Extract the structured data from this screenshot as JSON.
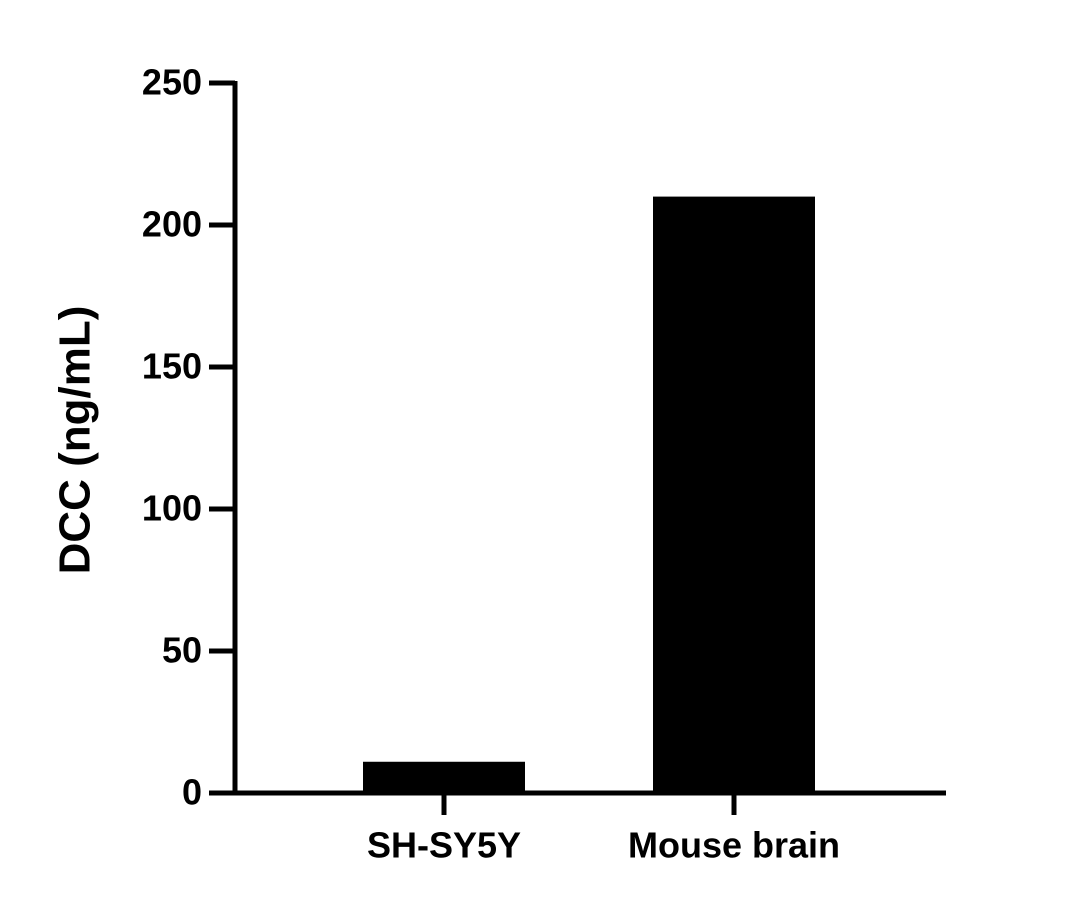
{
  "chart_data": {
    "type": "bar",
    "y_label": "DCC (ng/mL)",
    "categories": [
      "SH-SY5Y",
      "Mouse brain"
    ],
    "values": [
      11,
      210
    ],
    "color": "#000000",
    "ylim": [
      0,
      250
    ],
    "yticks": [
      0,
      50,
      100,
      150,
      200,
      250
    ],
    "grid": false
  }
}
